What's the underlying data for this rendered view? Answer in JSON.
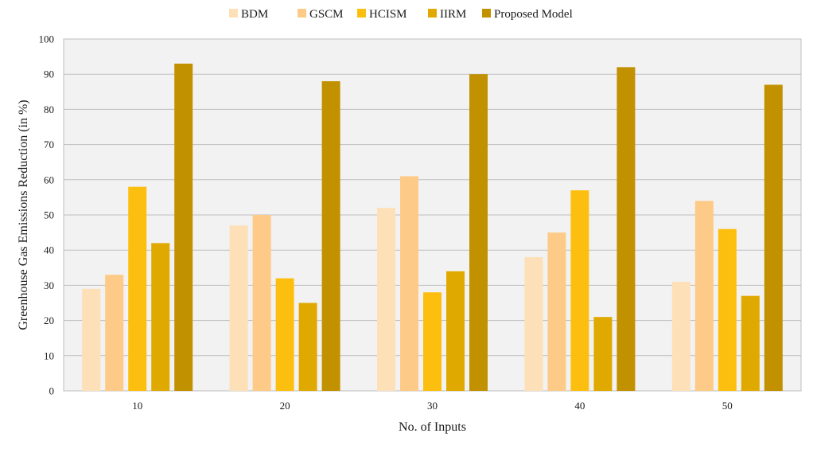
{
  "chart_data": {
    "type": "bar",
    "title": "",
    "xlabel": "No. of Inputs",
    "ylabel": "Greenhouse  Gas Emissions Reduction  (in %)",
    "categories": [
      "10",
      "20",
      "30",
      "40",
      "50"
    ],
    "ylim": [
      0,
      100
    ],
    "yticks": [
      0,
      10,
      20,
      30,
      40,
      50,
      60,
      70,
      80,
      90,
      100
    ],
    "grid": true,
    "legend_position": "top",
    "series": [
      {
        "name": "BDM",
        "color": "#fde0b8",
        "values": [
          29,
          47,
          52,
          38,
          31
        ]
      },
      {
        "name": "GSCM",
        "color": "#fdcb87",
        "values": [
          33,
          50,
          61,
          45,
          54
        ]
      },
      {
        "name": "HCISM",
        "color": "#fdbf0f",
        "values": [
          58,
          32,
          28,
          57,
          46
        ]
      },
      {
        "name": "IIRM",
        "color": "#e0a900",
        "values": [
          42,
          25,
          34,
          21,
          27
        ]
      },
      {
        "name": "Proposed Model",
        "color": "#c19100",
        "values": [
          93,
          88,
          90,
          92,
          87
        ]
      }
    ],
    "colors": {
      "plot_background": "#f2f2f2",
      "gridline": "#bfbfbf"
    }
  }
}
